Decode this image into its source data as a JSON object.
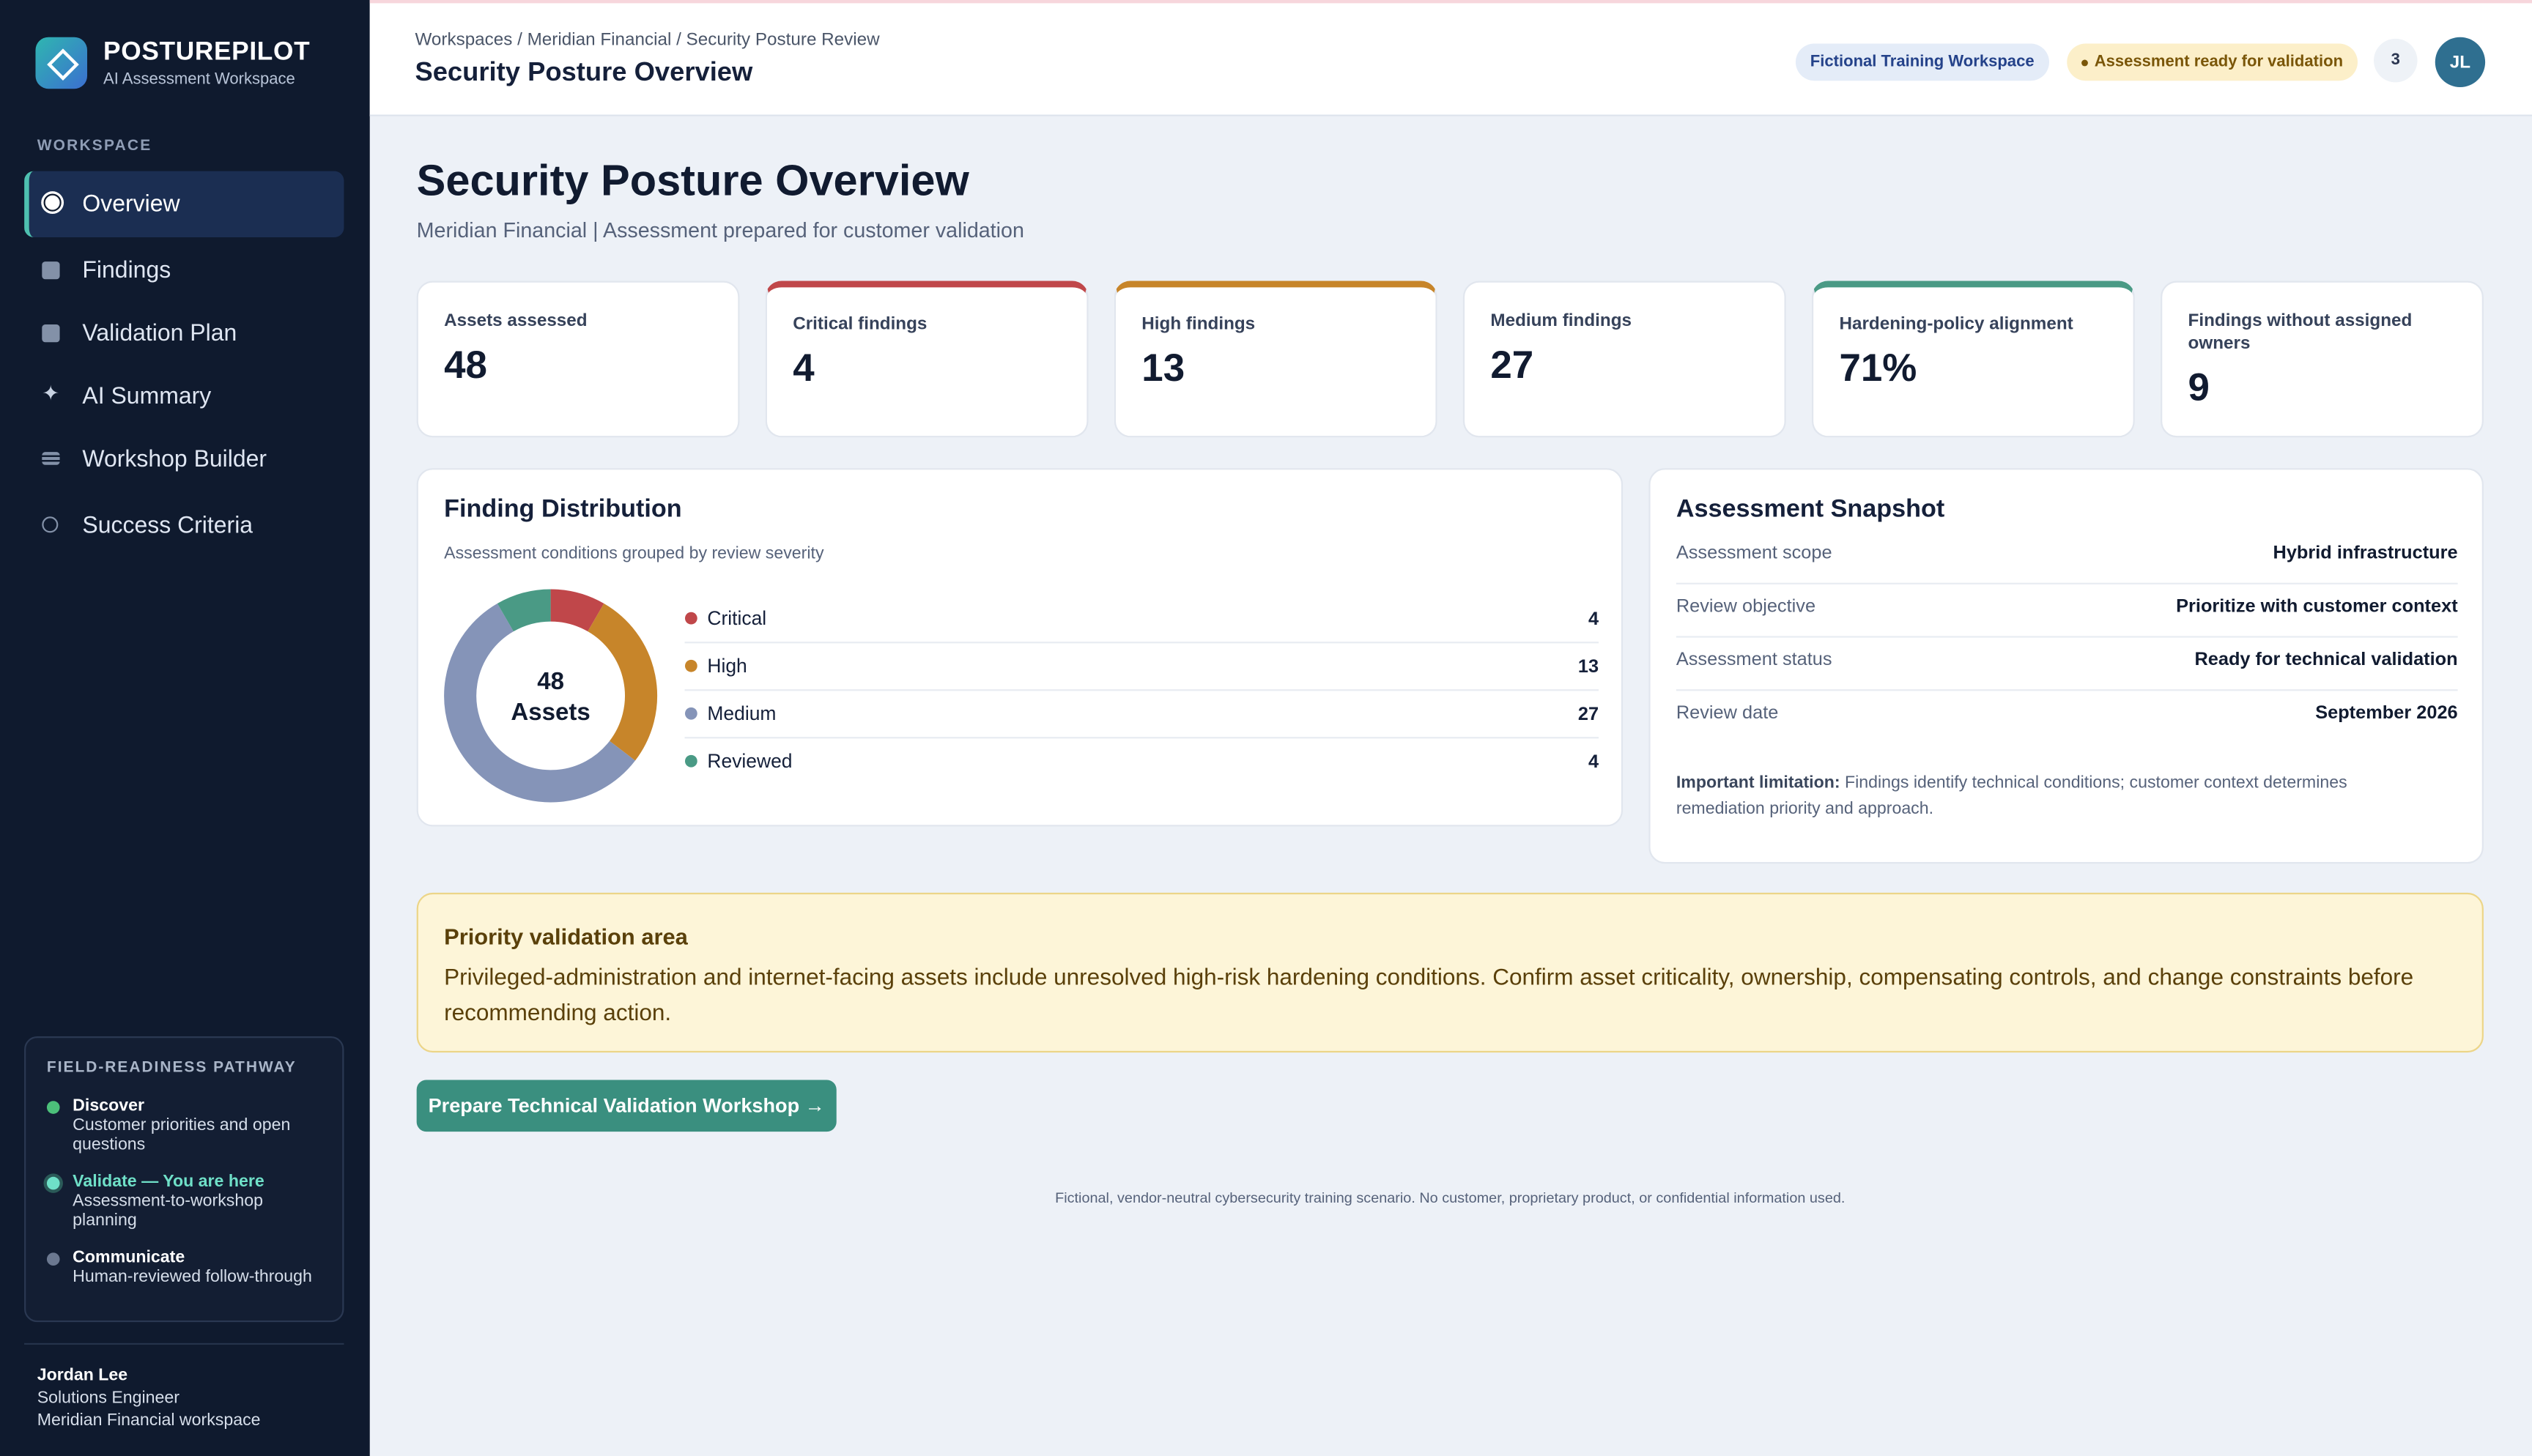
{
  "sidebar": {
    "brand": "POSTUREPILOT",
    "tagline": "AI Assessment Workspace",
    "section": "WORKSPACE",
    "nav": [
      "Overview",
      "Findings",
      "Validation Plan",
      "AI Summary",
      "Workshop Builder",
      "Success Criteria"
    ],
    "pathway": {
      "title": "FIELD-READINESS PATHWAY",
      "steps": [
        {
          "name": "Discover",
          "desc": "Customer priorities and open questions"
        },
        {
          "name": "Validate — You are here",
          "desc": "Assessment-to-workshop planning"
        },
        {
          "name": "Communicate",
          "desc": "Human-reviewed follow-through"
        }
      ]
    },
    "user": {
      "name": "Jordan Lee",
      "role": "Solutions Engineer",
      "workspace": "Meridian Financial workspace"
    }
  },
  "header": {
    "breadcrumb": "Workspaces / Meridian Financial / Security Posture Review",
    "title": "Security Posture Overview",
    "badges": [
      "Fictional Training Workspace",
      "Assessment ready for validation"
    ],
    "notifications": "3",
    "avatar": "JL"
  },
  "page": {
    "title": "Security Posture Overview",
    "subtitle": "Meridian Financial | Assessment prepared for customer validation"
  },
  "metrics": [
    {
      "label": "Assets assessed",
      "value": "48"
    },
    {
      "label": "Critical findings",
      "value": "4"
    },
    {
      "label": "High findings",
      "value": "13"
    },
    {
      "label": "Medium findings",
      "value": "27"
    },
    {
      "label": "Hardening-policy alignment",
      "value": "71%"
    },
    {
      "label": "Findings without assigned owners",
      "value": "9"
    }
  ],
  "distribution": {
    "type": "donut",
    "title": "Finding Distribution",
    "subtitle": "Assessment conditions grouped by review severity",
    "center_value": "48",
    "center_label": "Assets",
    "categories": [
      "Critical",
      "High",
      "Medium",
      "Reviewed"
    ],
    "values": [
      4,
      13,
      27,
      4
    ],
    "colors": [
      "#c0474a",
      "#c7852a",
      "#8594b8",
      "#4a9a85"
    ]
  },
  "snapshot": {
    "title": "Assessment Snapshot",
    "rows": [
      [
        "Assessment scope",
        "Hybrid infrastructure"
      ],
      [
        "Review objective",
        "Prioritize with customer context"
      ],
      [
        "Assessment status",
        "Ready for technical validation"
      ],
      [
        "Review date",
        "September 2026"
      ]
    ],
    "note_label": "Important limitation:",
    "note": "Findings identify technical conditions; customer context determines remediation priority and approach."
  },
  "alert": {
    "title": "Priority validation area",
    "text": "Privileged-administration and internet-facing assets include unresolved high-risk hardening conditions. Confirm asset criticality, ownership, compensating controls, and change constraints before recommending action."
  },
  "button": "Prepare Technical Validation Workshop →",
  "footer": "Fictional, vendor-neutral cybersecurity training scenario. No customer, proprietary product, or confidential information used."
}
